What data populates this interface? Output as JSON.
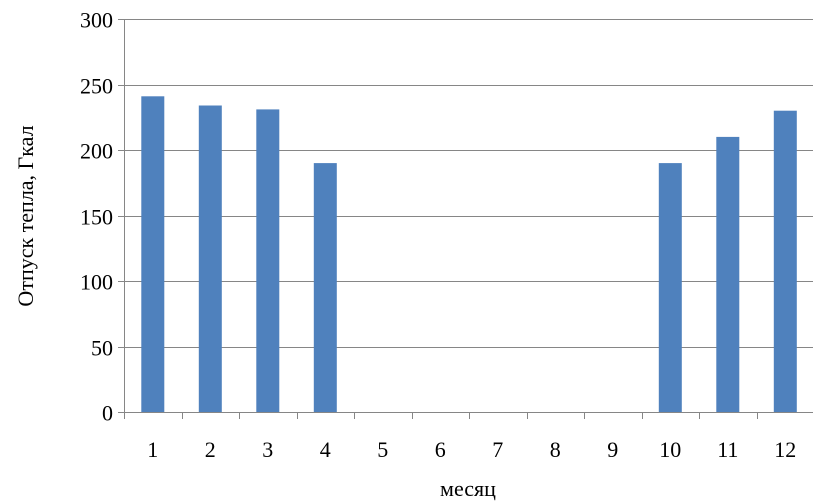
{
  "chart_data": {
    "type": "bar",
    "categories": [
      "1",
      "2",
      "3",
      "4",
      "5",
      "6",
      "7",
      "8",
      "9",
      "10",
      "11",
      "12"
    ],
    "values": [
      241,
      234,
      231,
      190,
      0,
      0,
      0,
      0,
      0,
      190,
      210,
      230
    ],
    "title": "",
    "xlabel": "месяц",
    "ylabel": "Отпуск тепла, Гкал",
    "ylim": [
      0,
      300
    ],
    "yticks": [
      "0",
      "50",
      "100",
      "150",
      "200",
      "250",
      "300"
    ],
    "grid": true,
    "legend": "none",
    "bar_color": "#4F81BD",
    "grid_color": "#868686"
  }
}
